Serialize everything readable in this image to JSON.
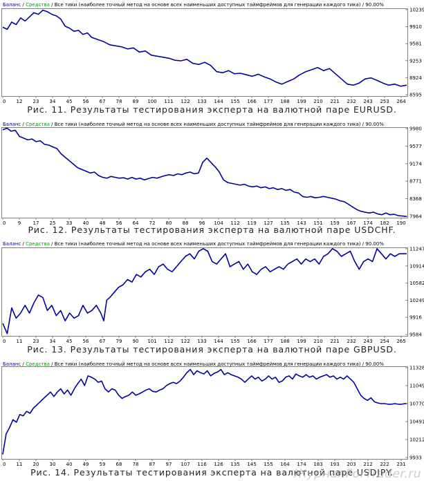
{
  "colors": {
    "balance": "#0000a0",
    "equity": "#00a000",
    "legend_text": "#000000",
    "frame": "#808080",
    "grid": "#c8c8c8",
    "axis_text": "#000000",
    "background": "#ffffff"
  },
  "watermark": "ЖурналForTrader.ru",
  "chart_data": [
    {
      "type": "line",
      "legend": {
        "balance": "Баланс",
        "sep1": " / ",
        "equity": "Средства",
        "sep2": " / ",
        "rest": "Все тики (наиболее точный метод на основе всех наименьших доступных таймфреймов для генерации каждого тика) / 90.00%"
      },
      "caption": "Рис. 11. Результаты тестирования эксперта на валютной паре EURUSD.",
      "xticks": [
        "0",
        "12",
        "23",
        "34",
        "45",
        "56",
        "67",
        "78",
        "89",
        "100",
        "111",
        "122",
        "133",
        "144",
        "155",
        "166",
        "177",
        "188",
        "199",
        "210",
        "221",
        "232",
        "243",
        "253",
        "264"
      ],
      "yticks": [
        "8595",
        "8924",
        "9253",
        "9581",
        "9910",
        "10239"
      ],
      "ylim": [
        8595,
        10239
      ],
      "xmax": 272,
      "x": [
        0,
        3,
        6,
        9,
        12,
        15,
        18,
        21,
        24,
        27,
        30,
        33,
        36,
        39,
        42,
        45,
        48,
        51,
        54,
        57,
        60,
        64,
        68,
        72,
        76,
        80,
        84,
        88,
        92,
        96,
        100,
        104,
        108,
        112,
        116,
        120,
        124,
        128,
        132,
        136,
        140,
        144,
        148,
        152,
        156,
        160,
        164,
        168,
        172,
        176,
        180,
        184,
        188,
        192,
        196,
        200,
        204,
        208,
        212,
        216,
        220,
        224,
        228,
        232,
        236,
        240,
        244,
        248,
        252,
        256,
        260,
        264,
        268,
        272
      ],
      "values": [
        9900,
        9860,
        10000,
        9950,
        10080,
        10020,
        10100,
        10180,
        10150,
        10230,
        10200,
        10150,
        10120,
        10060,
        9920,
        9880,
        9820,
        9840,
        9760,
        9790,
        9700,
        9660,
        9620,
        9560,
        9540,
        9520,
        9480,
        9500,
        9420,
        9440,
        9360,
        9340,
        9320,
        9300,
        9260,
        9250,
        9280,
        9200,
        9180,
        9220,
        9160,
        9040,
        9020,
        9060,
        9000,
        9010,
        8980,
        8950,
        8990,
        8940,
        8900,
        8840,
        8800,
        8850,
        8900,
        8980,
        9040,
        9080,
        9120,
        9060,
        9100,
        9000,
        8900,
        8800,
        8780,
        8820,
        8900,
        8920,
        8870,
        8820,
        8780,
        8800,
        8760,
        8780
      ]
    },
    {
      "type": "line",
      "legend": {
        "balance": "Баланс",
        "sep1": " / ",
        "equity": "Средства",
        "sep2": " / ",
        "rest": "Все тики (наиболее точный метод на основе всех наименьших доступных таймфреймов для генерации каждого тика) / 90.00%"
      },
      "caption": "Рис. 12. Результаты тестирования эксперта на валютной паре USDCHF.",
      "xticks": [
        "0",
        "9",
        "17",
        "25",
        "33",
        "40",
        "48",
        "56",
        "64",
        "72",
        "80",
        "88",
        "96",
        "104",
        "112",
        "119",
        "127",
        "135",
        "143",
        "151",
        "159",
        "167",
        "174",
        "182",
        "190"
      ],
      "yticks": [
        "7964",
        "8368",
        "8771",
        "9174",
        "9577",
        "9980"
      ],
      "ylim": [
        7964,
        9980
      ],
      "xmax": 194,
      "x": [
        0,
        2,
        4,
        6,
        8,
        10,
        12,
        14,
        16,
        18,
        20,
        22,
        24,
        26,
        28,
        30,
        32,
        34,
        36,
        38,
        40,
        42,
        44,
        46,
        48,
        50,
        52,
        54,
        56,
        58,
        60,
        62,
        64,
        66,
        68,
        70,
        72,
        74,
        76,
        78,
        80,
        82,
        84,
        86,
        88,
        90,
        92,
        94,
        96,
        98,
        100,
        102,
        104,
        106,
        108,
        110,
        112,
        114,
        116,
        118,
        120,
        122,
        124,
        126,
        128,
        130,
        132,
        134,
        136,
        138,
        140,
        142,
        144,
        146,
        148,
        150,
        152,
        154,
        156,
        158,
        160,
        162,
        164,
        166,
        168,
        170,
        172,
        174,
        176,
        178,
        180,
        182,
        184,
        186,
        188,
        190,
        192,
        194
      ],
      "values": [
        9950,
        9990,
        9920,
        9940,
        9800,
        9760,
        9720,
        9740,
        9680,
        9700,
        9620,
        9600,
        9560,
        9520,
        9400,
        9320,
        9240,
        9160,
        9080,
        9040,
        9000,
        8960,
        8980,
        8900,
        8860,
        8840,
        8880,
        8860,
        8840,
        8850,
        8820,
        8860,
        8820,
        8840,
        8800,
        8830,
        8860,
        8840,
        8870,
        8900,
        8920,
        8900,
        8940,
        8920,
        8960,
        8980,
        8940,
        8960,
        9200,
        9300,
        9200,
        9100,
        8980,
        8800,
        8740,
        8720,
        8700,
        8680,
        8700,
        8660,
        8640,
        8660,
        8620,
        8640,
        8600,
        8620,
        8580,
        8600,
        8560,
        8580,
        8520,
        8500,
        8420,
        8400,
        8420,
        8390,
        8400,
        8420,
        8400,
        8380,
        8360,
        8320,
        8300,
        8240,
        8180,
        8120,
        8080,
        8060,
        8040,
        8060,
        8020,
        8000,
        8040,
        8000,
        8010,
        7980,
        7970,
        7960
      ]
    },
    {
      "type": "line",
      "legend": {
        "balance": "Баланс",
        "sep1": " / ",
        "equity": "Средства",
        "sep2": " / ",
        "rest": "Все тики (наиболее точный метод на основе всех наименьших доступных таймфреймов для генерации каждого тика) / 90.00%"
      },
      "caption": "Рис. 13. Результаты тестирования эксперта на валютной паре GBPUSD.",
      "xticks": [
        "0",
        "11",
        "23",
        "34",
        "45",
        "56",
        "67",
        "79",
        "90",
        "101",
        "112",
        "122",
        "133",
        "144",
        "155",
        "166",
        "177",
        "188",
        "199",
        "210",
        "221",
        "232",
        "243",
        "254",
        "265"
      ],
      "yticks": [
        "9584",
        "9916",
        "10249",
        "10582",
        "10914",
        "11247"
      ],
      "ylim": [
        9584,
        11247
      ],
      "xmax": 272,
      "x": [
        0,
        3,
        6,
        9,
        12,
        15,
        18,
        21,
        24,
        27,
        30,
        33,
        36,
        39,
        42,
        45,
        48,
        51,
        54,
        57,
        60,
        63,
        66,
        68,
        70,
        72,
        75,
        78,
        81,
        84,
        87,
        90,
        93,
        96,
        99,
        102,
        105,
        108,
        111,
        114,
        117,
        120,
        123,
        126,
        129,
        132,
        135,
        138,
        141,
        144,
        147,
        150,
        153,
        156,
        159,
        162,
        165,
        168,
        171,
        174,
        177,
        180,
        183,
        186,
        189,
        192,
        195,
        198,
        201,
        204,
        207,
        210,
        213,
        216,
        219,
        222,
        225,
        228,
        231,
        234,
        237,
        240,
        243,
        246,
        249,
        252,
        255,
        258,
        261,
        264,
        267,
        270,
        272
      ],
      "values": [
        9800,
        9600,
        10100,
        9900,
        10000,
        10150,
        10000,
        10200,
        10350,
        10300,
        10050,
        10150,
        9950,
        10050,
        9850,
        10000,
        9900,
        9950,
        10150,
        10000,
        10050,
        10150,
        10000,
        9850,
        10250,
        10300,
        10400,
        10500,
        10550,
        10650,
        10600,
        10750,
        10700,
        10800,
        10850,
        10750,
        10900,
        10950,
        10850,
        10800,
        10900,
        11000,
        11100,
        11150,
        11050,
        11200,
        11250,
        11200,
        11000,
        10950,
        11050,
        11150,
        10900,
        10950,
        11000,
        10850,
        10950,
        10800,
        10750,
        10850,
        10900,
        10800,
        10850,
        10900,
        10850,
        10950,
        11000,
        11050,
        10950,
        11050,
        11000,
        11050,
        10950,
        11100,
        11150,
        11250,
        11200,
        11100,
        11150,
        11200,
        11000,
        10850,
        11000,
        11050,
        11000,
        11250,
        11150,
        11050,
        11150,
        11100,
        11150,
        11150,
        11150
      ]
    },
    {
      "type": "line",
      "legend": {
        "balance": "Баланс",
        "sep1": " / ",
        "equity": "Средства",
        "sep2": " / ",
        "rest": "Все тики (наиболее точный метод на основе всех наименьших доступных таймфреймов для генерации каждого тика) / 90.00%"
      },
      "caption": "Рис. 14. Результаты тестирования эксперта на валютной паре USDJPY.",
      "xticks": [
        "0",
        "11",
        "20",
        "30",
        "40",
        "49",
        "59",
        "68",
        "78",
        "87",
        "97",
        "107",
        "116",
        "126",
        "135",
        "145",
        "155",
        "164",
        "174",
        "183",
        "193",
        "203",
        "212",
        "222",
        "231"
      ],
      "yticks": [
        "9933",
        "10212",
        "10491",
        "10770",
        "11049",
        "11328"
      ],
      "ylim": [
        9933,
        11328
      ],
      "xmax": 237,
      "x": [
        0,
        2,
        4,
        6,
        8,
        10,
        12,
        14,
        16,
        18,
        20,
        22,
        24,
        26,
        28,
        30,
        32,
        34,
        36,
        38,
        40,
        42,
        44,
        46,
        48,
        50,
        52,
        54,
        56,
        58,
        60,
        62,
        64,
        66,
        68,
        70,
        72,
        74,
        76,
        78,
        80,
        82,
        84,
        86,
        88,
        90,
        92,
        94,
        96,
        98,
        100,
        102,
        104,
        106,
        108,
        110,
        112,
        114,
        116,
        118,
        120,
        122,
        124,
        126,
        128,
        130,
        132,
        134,
        136,
        138,
        140,
        142,
        144,
        146,
        148,
        150,
        152,
        154,
        156,
        158,
        160,
        162,
        164,
        166,
        168,
        170,
        172,
        174,
        176,
        178,
        180,
        182,
        184,
        186,
        188,
        190,
        192,
        194,
        196,
        198,
        200,
        202,
        204,
        206,
        208,
        210,
        212,
        214,
        216,
        218,
        220,
        222,
        224,
        226,
        228,
        230,
        232,
        234,
        236,
        237
      ],
      "values": [
        9980,
        10300,
        10400,
        10520,
        10480,
        10600,
        10580,
        10650,
        10620,
        10700,
        10750,
        10800,
        10850,
        10900,
        10950,
        10880,
        10950,
        11000,
        10920,
        10980,
        10900,
        11000,
        11080,
        11150,
        11050,
        11200,
        11180,
        11150,
        11100,
        11120,
        11000,
        10950,
        11000,
        10980,
        10900,
        10850,
        10880,
        10900,
        10950,
        10900,
        10920,
        10950,
        10980,
        11000,
        10960,
        10950,
        10980,
        11000,
        11050,
        11080,
        11100,
        11080,
        11120,
        11180,
        11250,
        11300,
        11220,
        11280,
        11250,
        11230,
        11280,
        11200,
        11240,
        11260,
        11300,
        11220,
        11250,
        11220,
        11200,
        11180,
        11150,
        11100,
        11150,
        11200,
        11150,
        11180,
        11120,
        11150,
        11200,
        11150,
        11180,
        11100,
        11120,
        11180,
        11200,
        11150,
        11230,
        11200,
        11180,
        11220,
        11180,
        11200,
        11150,
        11180,
        11200,
        11220,
        11180,
        11200,
        11150,
        11180,
        11150,
        11200,
        11150,
        11100,
        11000,
        10900,
        10850,
        10820,
        10860,
        10800,
        10780,
        10770,
        10770,
        10760,
        10760,
        10770,
        10760,
        10760,
        10770,
        10770
      ]
    }
  ]
}
